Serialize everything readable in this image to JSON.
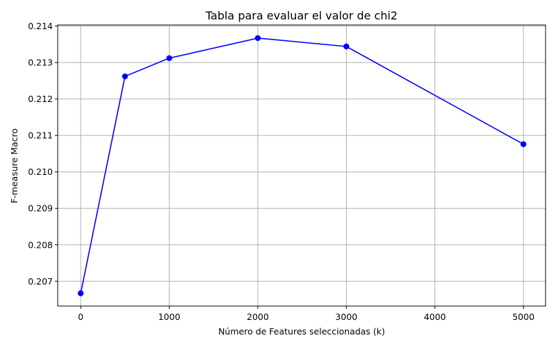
{
  "chart_data": {
    "type": "line",
    "title": "Tabla para evaluar el valor de chi2",
    "xlabel": "Número de Features seleccionadas (k)",
    "ylabel": "F-measure Macro",
    "xlim": [
      -260,
      5250
    ],
    "ylim": [
      0.20632,
      0.21403
    ],
    "xticks": [
      0,
      1000,
      2000,
      3000,
      4000,
      5000
    ],
    "xtick_labels": [
      "0",
      "1000",
      "2000",
      "3000",
      "4000",
      "5000"
    ],
    "yticks": [
      0.207,
      0.208,
      0.209,
      0.21,
      0.211,
      0.212,
      0.213,
      0.214
    ],
    "ytick_labels": [
      "0.207",
      "0.208",
      "0.209",
      "0.210",
      "0.211",
      "0.212",
      "0.213",
      "0.214"
    ],
    "grid": true,
    "series": [
      {
        "color": "#0000ff",
        "marker": "circle",
        "x": [
          0,
          500,
          1000,
          2000,
          3000,
          5000
        ],
        "y": [
          0.20667,
          0.21262,
          0.21312,
          0.21367,
          0.21344,
          0.21076
        ]
      }
    ]
  }
}
